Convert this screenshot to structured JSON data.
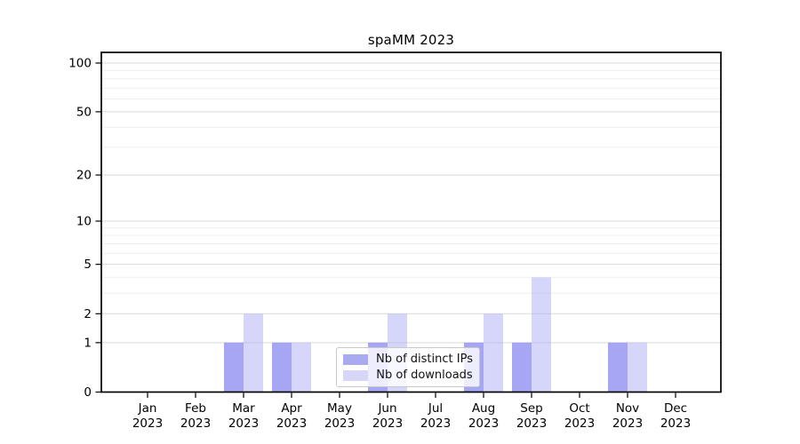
{
  "figure": {
    "title": "spaMM 2023",
    "background_color": "#ffffff"
  },
  "chart_data": {
    "type": "bar",
    "title": "spaMM 2023",
    "yscale": "log1p",
    "ylim": [
      0,
      117
    ],
    "grid": {
      "major_color": "#d9d9d9",
      "minor_color": "#efefef",
      "grid_on": true
    },
    "x_tick_months": [
      "Jan",
      "Feb",
      "Mar",
      "Apr",
      "May",
      "Jun",
      "Jul",
      "Aug",
      "Sep",
      "Oct",
      "Nov",
      "Dec"
    ],
    "x_tick_year": "2023",
    "y_major_ticks": [
      0,
      1,
      2,
      5,
      10,
      20,
      50,
      100
    ],
    "y_minor_gridlines": [
      3,
      4,
      6,
      7,
      8,
      9,
      30,
      40,
      60,
      70,
      80,
      90
    ],
    "series": [
      {
        "name": "Nb of distinct IPs",
        "values": [
          0,
          0,
          1,
          1,
          0,
          1,
          0,
          1,
          1,
          0,
          1,
          0
        ],
        "color": "rgba(138,138,240,0.76)",
        "swatch": "#aaaaf0"
      },
      {
        "name": "Nb of downloads",
        "values": [
          0,
          0,
          2,
          1,
          0,
          2,
          0,
          2,
          4,
          0,
          1,
          0
        ],
        "color": "rgba(170,170,246,0.48)",
        "swatch": "#d6d6f6"
      }
    ],
    "legend": {
      "position": "lower center",
      "labels": [
        "Nb of distinct IPs",
        "Nb of downloads"
      ]
    }
  }
}
